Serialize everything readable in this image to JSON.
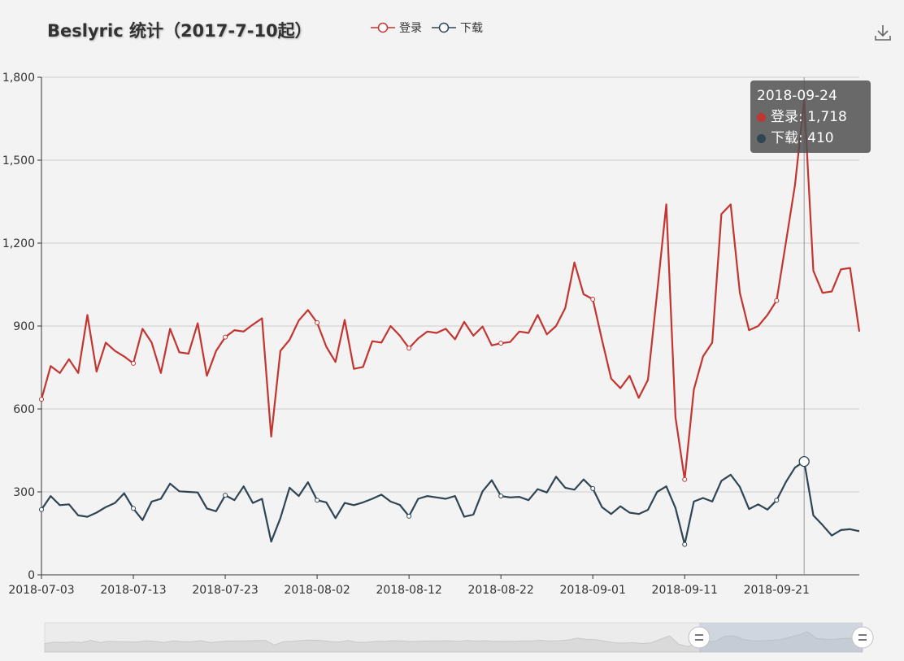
{
  "title": "Beslyric 统计（2017-7-10起）",
  "legend": [
    {
      "name": "登录",
      "color": "#c23531"
    },
    {
      "name": "下载",
      "color": "#2f4554"
    }
  ],
  "tooltip": {
    "date": "2018-09-24",
    "rows": [
      {
        "label": "登录: 1,718",
        "color": "#c23531"
      },
      {
        "label": "下载: 410",
        "color": "#2f4554"
      }
    ]
  },
  "chart_data": {
    "type": "line",
    "x_start": "2018-07-03",
    "x_end": "2018-09-30",
    "x": [
      "2018-07-03",
      "2018-07-04",
      "2018-07-05",
      "2018-07-06",
      "2018-07-07",
      "2018-07-08",
      "2018-07-09",
      "2018-07-10",
      "2018-07-11",
      "2018-07-12",
      "2018-07-13",
      "2018-07-14",
      "2018-07-15",
      "2018-07-16",
      "2018-07-17",
      "2018-07-18",
      "2018-07-19",
      "2018-07-20",
      "2018-07-21",
      "2018-07-22",
      "2018-07-23",
      "2018-07-24",
      "2018-07-25",
      "2018-07-26",
      "2018-07-27",
      "2018-07-28",
      "2018-07-29",
      "2018-07-30",
      "2018-07-31",
      "2018-08-01",
      "2018-08-02",
      "2018-08-03",
      "2018-08-04",
      "2018-08-05",
      "2018-08-06",
      "2018-08-07",
      "2018-08-08",
      "2018-08-09",
      "2018-08-10",
      "2018-08-11",
      "2018-08-12",
      "2018-08-13",
      "2018-08-14",
      "2018-08-15",
      "2018-08-16",
      "2018-08-17",
      "2018-08-18",
      "2018-08-19",
      "2018-08-20",
      "2018-08-21",
      "2018-08-22",
      "2018-08-23",
      "2018-08-24",
      "2018-08-25",
      "2018-08-26",
      "2018-08-27",
      "2018-08-28",
      "2018-08-29",
      "2018-08-30",
      "2018-08-31",
      "2018-09-01",
      "2018-09-02",
      "2018-09-03",
      "2018-09-04",
      "2018-09-05",
      "2018-09-06",
      "2018-09-07",
      "2018-09-08",
      "2018-09-09",
      "2018-09-10",
      "2018-09-11",
      "2018-09-12",
      "2018-09-13",
      "2018-09-14",
      "2018-09-15",
      "2018-09-16",
      "2018-09-17",
      "2018-09-18",
      "2018-09-19",
      "2018-09-20",
      "2018-09-21",
      "2018-09-22",
      "2018-09-23",
      "2018-09-24",
      "2018-09-25",
      "2018-09-26",
      "2018-09-27",
      "2018-09-28",
      "2018-09-29",
      "2018-09-30"
    ],
    "series": [
      {
        "name": "登录",
        "color": "#c23531",
        "values": [
          635,
          755,
          730,
          780,
          730,
          940,
          735,
          840,
          810,
          790,
          765,
          890,
          840,
          730,
          890,
          805,
          800,
          910,
          720,
          810,
          860,
          885,
          880,
          905,
          928,
          500,
          810,
          850,
          920,
          958,
          912,
          825,
          770,
          922,
          745,
          752,
          845,
          840,
          900,
          865,
          820,
          855,
          880,
          875,
          890,
          852,
          915,
          865,
          898,
          830,
          838,
          842,
          880,
          875,
          940,
          870,
          900,
          965,
          1130,
          1015,
          997,
          850,
          710,
          675,
          720,
          640,
          705,
          1020,
          1340,
          570,
          345,
          670,
          790,
          840,
          1305,
          1340,
          1020,
          885,
          900,
          940,
          992,
          1200,
          1410,
          1718,
          1100,
          1020,
          1025,
          1105,
          1110,
          880
        ]
      },
      {
        "name": "下载",
        "color": "#2f4554",
        "values": [
          236,
          285,
          252,
          255,
          215,
          210,
          225,
          245,
          260,
          295,
          240,
          198,
          265,
          275,
          330,
          302,
          300,
          298,
          240,
          230,
          288,
          270,
          320,
          260,
          275,
          120,
          205,
          315,
          285,
          335,
          270,
          262,
          205,
          260,
          252,
          262,
          275,
          290,
          265,
          253,
          212,
          275,
          285,
          280,
          275,
          285,
          210,
          218,
          302,
          342,
          285,
          280,
          282,
          270,
          310,
          298,
          355,
          315,
          308,
          345,
          312,
          245,
          220,
          248,
          225,
          220,
          235,
          300,
          320,
          242,
          110,
          265,
          278,
          265,
          340,
          362,
          318,
          238,
          255,
          236,
          270,
          335,
          388,
          410,
          215,
          180,
          142,
          162,
          165,
          158
        ]
      }
    ],
    "ylim": [
      0,
      1800
    ],
    "yticks": [
      "0",
      "300",
      "600",
      "900",
      "1,200",
      "1,500",
      "1,800"
    ],
    "ytick_values": [
      0,
      300,
      600,
      900,
      1200,
      1500,
      1800
    ],
    "xticks": [
      "2018-07-03",
      "2018-07-13",
      "2018-07-23",
      "2018-08-02",
      "2018-08-12",
      "2018-08-22",
      "2018-09-01",
      "2018-09-11",
      "2018-09-21"
    ],
    "xtick_indices": [
      0,
      10,
      20,
      30,
      40,
      50,
      60,
      70,
      80
    ],
    "highlight_index": 83,
    "legend_position": "top-center",
    "grid": true
  }
}
